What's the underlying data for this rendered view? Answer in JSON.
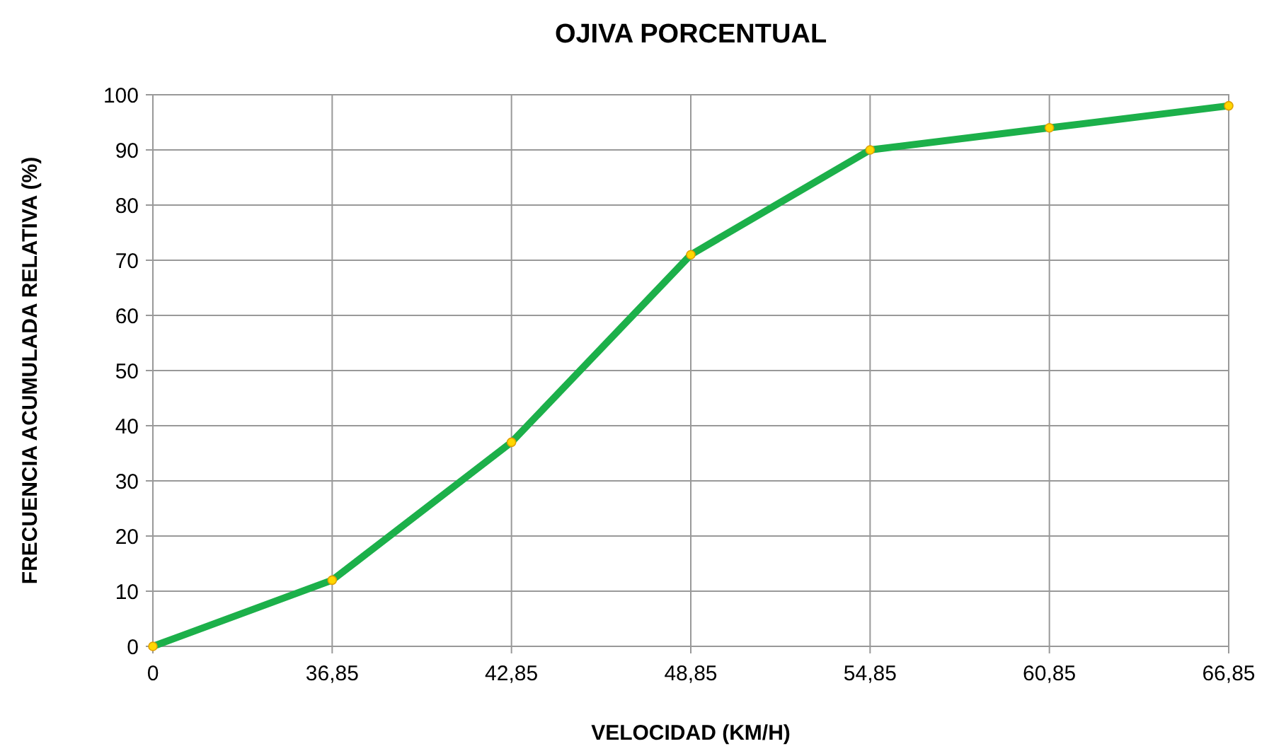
{
  "chart_data": {
    "type": "line",
    "title": "OJIVA PORCENTUAL",
    "xlabel": "VELOCIDAD (KM/H)",
    "ylabel": "FRECUENCIA  ACUMULADA  RELATIVA (%)",
    "categories": [
      "0",
      "36,85",
      "42,85",
      "48,85",
      "54,85",
      "60,85",
      "66,85"
    ],
    "series": [
      {
        "color": "#1cb04a",
        "values": [
          0,
          12,
          37,
          71,
          90,
          94,
          98
        ]
      }
    ],
    "ylim": [
      0,
      100
    ],
    "yticks": [
      0,
      10,
      20,
      30,
      40,
      50,
      60,
      70,
      80,
      90,
      100
    ],
    "grid": true,
    "marker": "circle",
    "line_style": "solid"
  }
}
